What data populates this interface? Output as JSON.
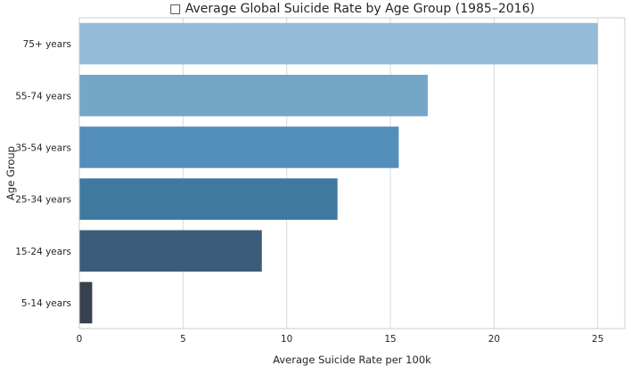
{
  "chart_data": {
    "type": "bar",
    "orientation": "horizontal",
    "title": "□ Average Global Suicide Rate by Age Group (1985–2016)",
    "xlabel": "Average Suicide Rate per 100k",
    "ylabel": "Age Group",
    "categories": [
      "75+ years",
      "55-74 years",
      "35-54 years",
      "25-34 years",
      "15-24 years",
      "5-14 years"
    ],
    "values": [
      25.0,
      16.8,
      15.4,
      12.45,
      8.8,
      0.62
    ],
    "xlim": [
      0,
      26.3
    ],
    "xticks": [
      0,
      5,
      10,
      15,
      20,
      25
    ],
    "grid": "vertical",
    "colors": [
      "#94bbd8",
      "#74a6c8",
      "#548ebb",
      "#40799f",
      "#3c5d79",
      "#37414f"
    ]
  }
}
